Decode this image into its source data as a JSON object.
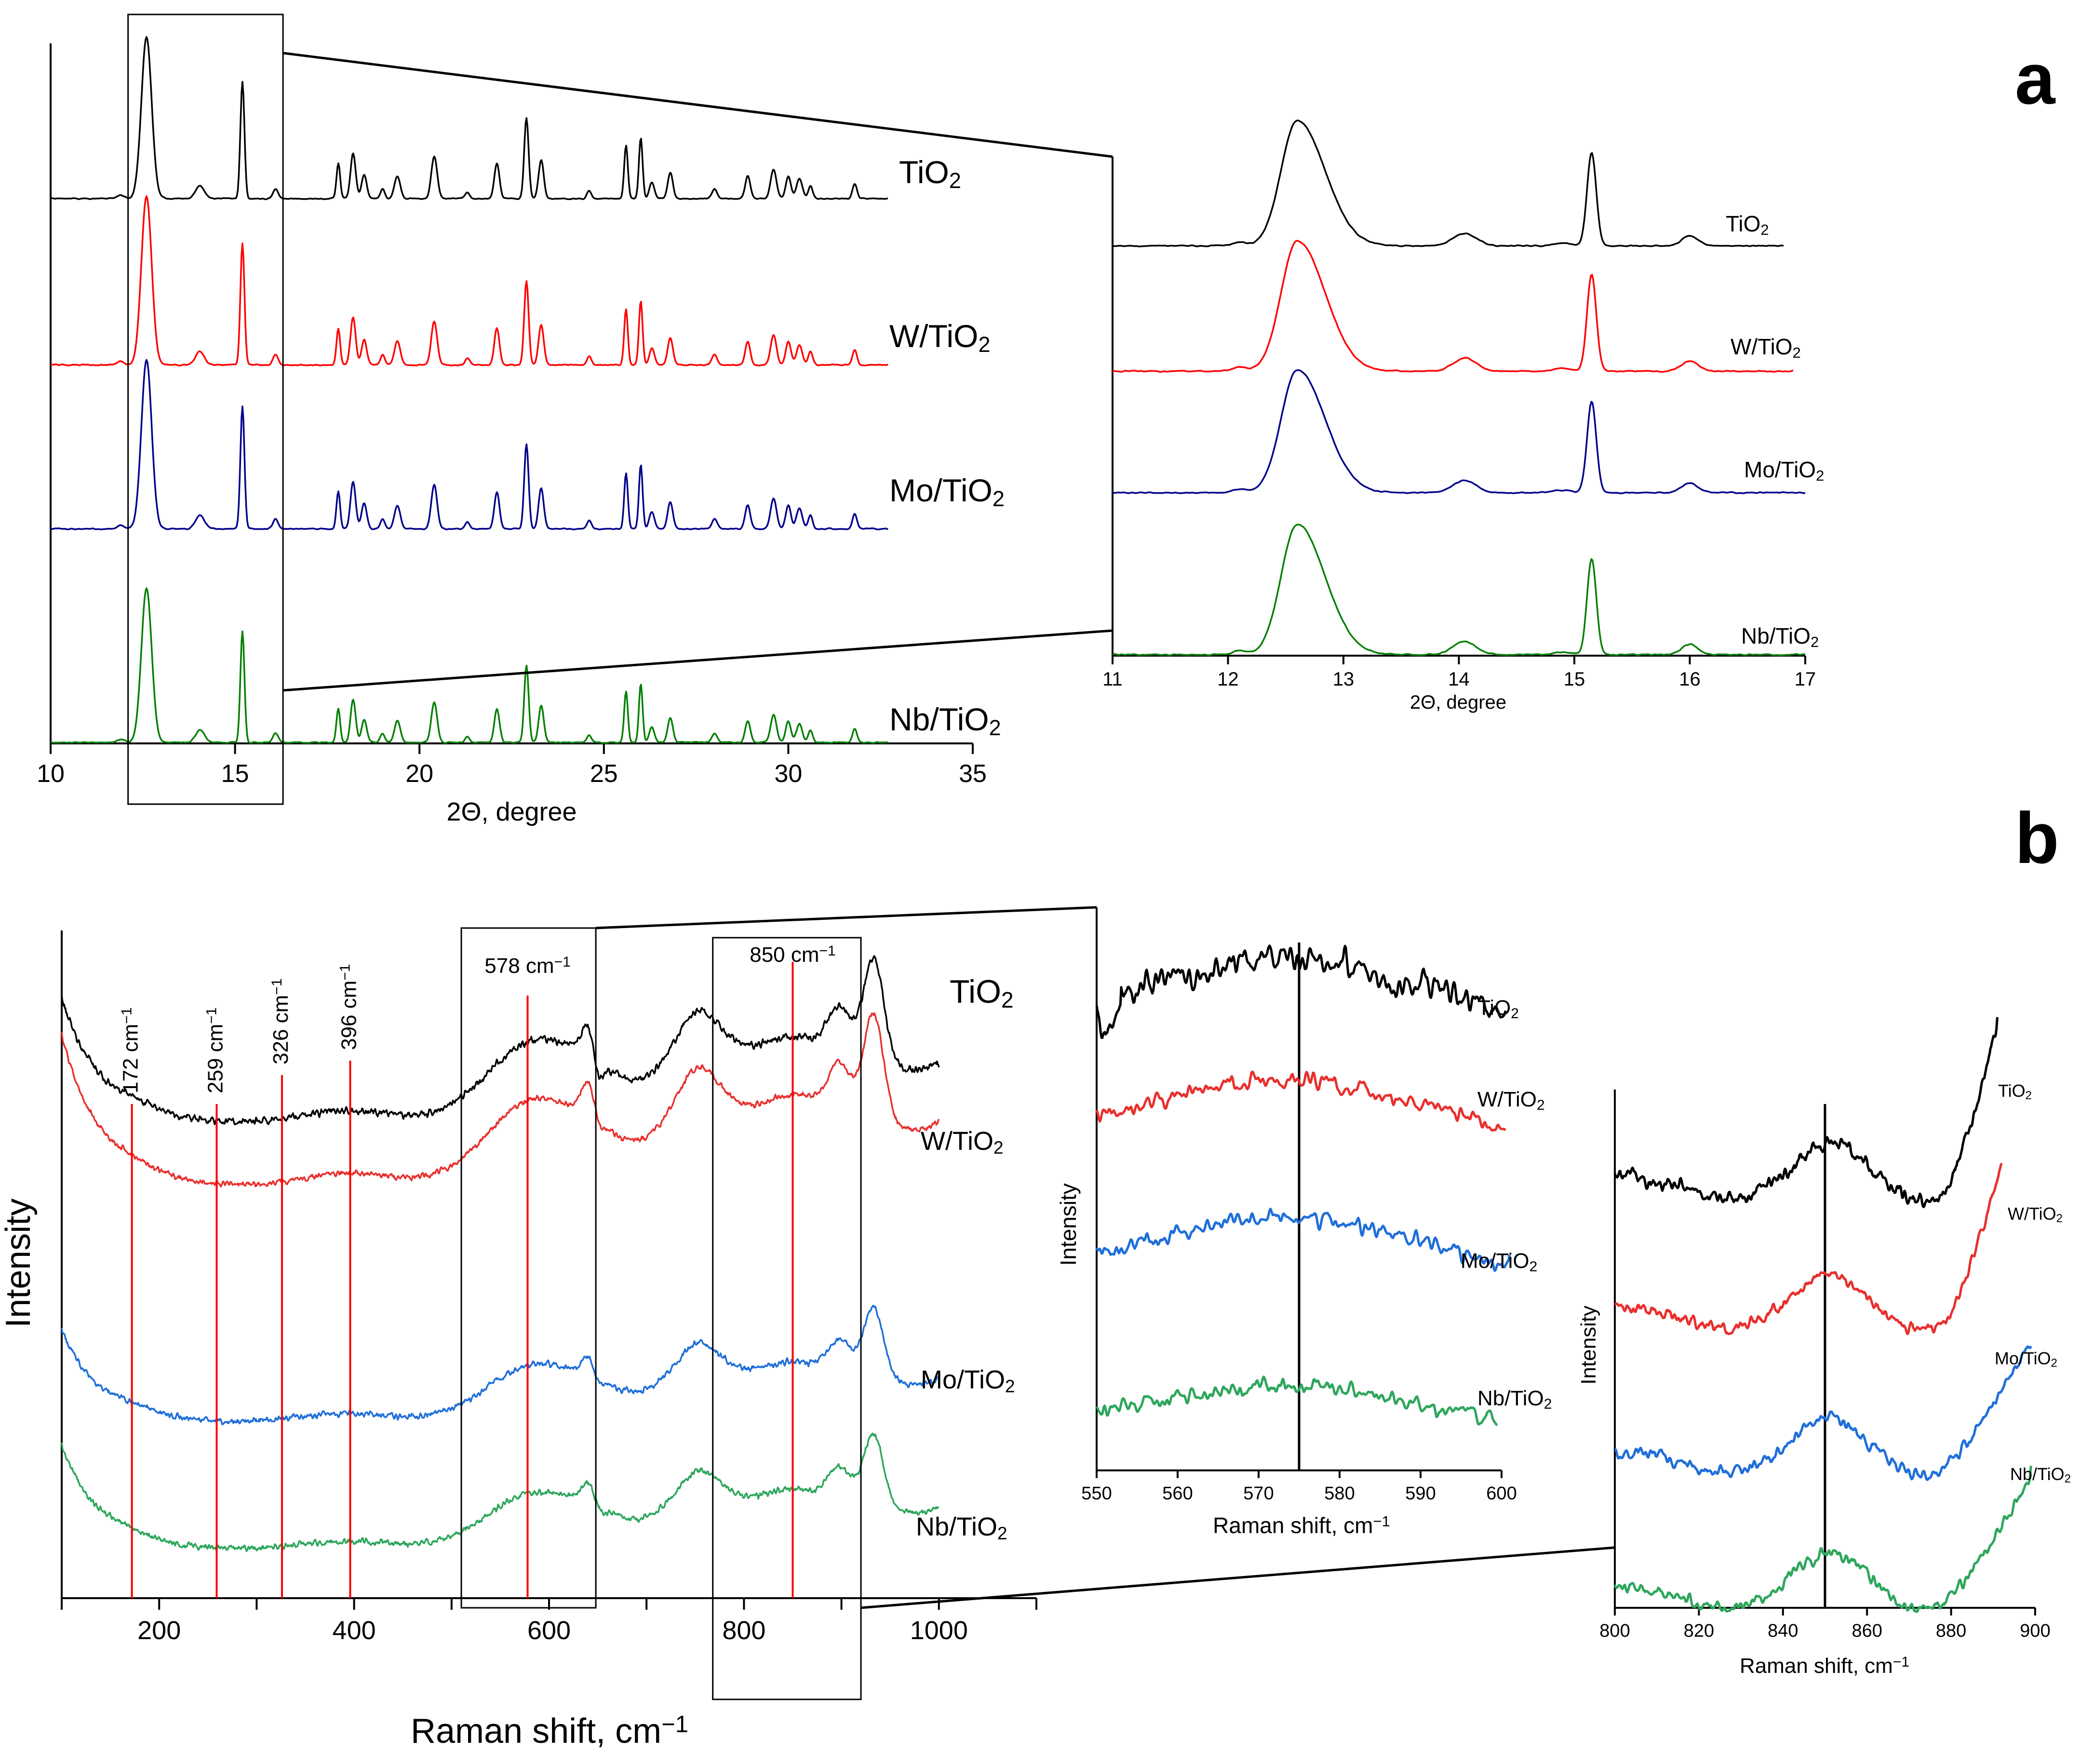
{
  "colors": {
    "TiO2": "#000000",
    "W/TiO2": "#ff0000",
    "Mo/TiO2": "#00008b",
    "Nb/TiO2": "#008000",
    "W/TiO2_raman": "#e8302e",
    "Mo/TiO2_raman": "#1f6fd9",
    "Nb/TiO2_raman": "#2ea65c",
    "marker": "#ff0000"
  },
  "panel_labels": {
    "a": "a",
    "b": "b"
  },
  "chart_data": [
    {
      "id": "xrd_main",
      "type": "line",
      "xlabel": "2Θ, degree",
      "ylabel": "",
      "xlim": [
        10,
        35
      ],
      "xticks": [
        10,
        15,
        20,
        25,
        30,
        35
      ],
      "x_range": [
        10,
        32.7
      ],
      "zoom_box_x": [
        12.1,
        16.3
      ],
      "peaks": [
        [
          11.9,
          0.02,
          0.1
        ],
        [
          12.6,
          1.0,
          0.14
        ],
        [
          14.05,
          0.08,
          0.12
        ],
        [
          15.2,
          0.72,
          0.055
        ],
        [
          16.1,
          0.06,
          0.07
        ],
        [
          17.8,
          0.22,
          0.05
        ],
        [
          18.2,
          0.28,
          0.07
        ],
        [
          18.5,
          0.15,
          0.07
        ],
        [
          19.0,
          0.06,
          0.06
        ],
        [
          19.4,
          0.14,
          0.08
        ],
        [
          20.4,
          0.26,
          0.08
        ],
        [
          21.3,
          0.04,
          0.06
        ],
        [
          22.1,
          0.22,
          0.07
        ],
        [
          22.9,
          0.5,
          0.06
        ],
        [
          23.3,
          0.24,
          0.07
        ],
        [
          24.6,
          0.05,
          0.06
        ],
        [
          25.6,
          0.33,
          0.05
        ],
        [
          26.0,
          0.38,
          0.05
        ],
        [
          26.3,
          0.1,
          0.07
        ],
        [
          26.8,
          0.16,
          0.07
        ],
        [
          28.0,
          0.06,
          0.07
        ],
        [
          28.9,
          0.14,
          0.07
        ],
        [
          29.6,
          0.18,
          0.08
        ],
        [
          30.0,
          0.14,
          0.07
        ],
        [
          30.3,
          0.12,
          0.08
        ],
        [
          30.6,
          0.08,
          0.06
        ],
        [
          31.8,
          0.09,
          0.06
        ]
      ],
      "series": [
        {
          "name": "TiO2",
          "label": "TiO",
          "label_sub": "2",
          "scale": 1.0
        },
        {
          "name": "W/TiO2",
          "label": "W/TiO",
          "label_sub": "2",
          "scale": 1.0
        },
        {
          "name": "Mo/TiO2",
          "label": "Mo/TiO",
          "label_sub": "2",
          "scale": 1.05
        },
        {
          "name": "Nb/TiO2",
          "label": "Nb/TiO",
          "label_sub": "2",
          "scale": 1.0
        }
      ]
    },
    {
      "id": "xrd_inset",
      "type": "line",
      "xlabel": "2Θ, degree",
      "ylabel": "",
      "xlim": [
        11,
        17
      ],
      "xticks": [
        11,
        12,
        13,
        14,
        15,
        16,
        17
      ],
      "series": [
        {
          "name": "TiO2",
          "label": "TiO",
          "label_sub": "2",
          "x_range": [
            11,
            17
          ]
        },
        {
          "name": "W/TiO2",
          "label": "W/TiO",
          "label_sub": "2",
          "x_range": [
            11,
            17
          ]
        },
        {
          "name": "Mo/TiO2",
          "label": "Mo/TiO",
          "label_sub": "2",
          "x_range": [
            11,
            17
          ]
        },
        {
          "name": "Nb/TiO2",
          "label": "Nb/TiO",
          "label_sub": "2",
          "x_range": [
            11,
            17
          ]
        }
      ]
    },
    {
      "id": "raman_main",
      "type": "line",
      "xlabel": "Raman shift, cm",
      "xlabel_sup": "−1",
      "ylabel": "Intensity",
      "xlim": [
        100,
        1100
      ],
      "xticks": [
        200,
        400,
        600,
        800,
        1000
      ],
      "x_range": [
        100,
        1000
      ],
      "markers": [
        {
          "x": 172,
          "label": "172 cm",
          "sup": "−1"
        },
        {
          "x": 259,
          "label": "259 cm",
          "sup": "−1"
        },
        {
          "x": 326,
          "label": "326 cm",
          "sup": "−1"
        },
        {
          "x": 396,
          "label": "396 cm",
          "sup": "−1"
        },
        {
          "x": 578,
          "label": "578 cm",
          "sup": "−1"
        },
        {
          "x": 850,
          "label": "850 cm",
          "sup": "−1"
        }
      ],
      "zoom_boxes": [
        [
          510,
          648
        ],
        [
          768,
          920
        ]
      ],
      "series": [
        {
          "name": "TiO2",
          "label": "TiO",
          "label_sub": "2"
        },
        {
          "name": "W/TiO2",
          "label": "W/TiO",
          "label_sub": "2"
        },
        {
          "name": "Mo/TiO2",
          "label": "Mo/TiO",
          "label_sub": "2"
        },
        {
          "name": "Nb/TiO2",
          "label": "Nb/TiO",
          "label_sub": "2"
        }
      ]
    },
    {
      "id": "raman_inset1",
      "type": "line",
      "xlabel": "Raman shift, cm",
      "xlabel_sup": "−1",
      "ylabel": "Intensity",
      "xlim": [
        550,
        600
      ],
      "xticks": [
        550,
        560,
        570,
        580,
        590,
        600
      ],
      "reference_line_x": 575,
      "series": [
        {
          "name": "TiO2",
          "label": "TiO",
          "label_sub": "2"
        },
        {
          "name": "W/TiO2",
          "label": "W/TiO",
          "label_sub": "2"
        },
        {
          "name": "Mo/TiO2",
          "label": "Mo/TiO",
          "label_sub": "2"
        },
        {
          "name": "Nb/TiO2",
          "label": "Nb/TiO",
          "label_sub": "2"
        }
      ]
    },
    {
      "id": "raman_inset2",
      "type": "line",
      "xlabel": "Raman shift, cm",
      "xlabel_sup": "−1",
      "ylabel": "Intensity",
      "xlim": [
        800,
        900
      ],
      "xticks": [
        800,
        820,
        840,
        860,
        880,
        900
      ],
      "reference_line_x": 850,
      "series": [
        {
          "name": "TiO2",
          "label": "TiO",
          "label_sub": "2"
        },
        {
          "name": "W/TiO2",
          "label": "W/TiO",
          "label_sub": "2"
        },
        {
          "name": "Mo/TiO2",
          "label": "Mo/TiO",
          "label_sub": "2"
        },
        {
          "name": "Nb/TiO2",
          "label": "Nb/TiO",
          "label_sub": "2"
        }
      ]
    }
  ]
}
